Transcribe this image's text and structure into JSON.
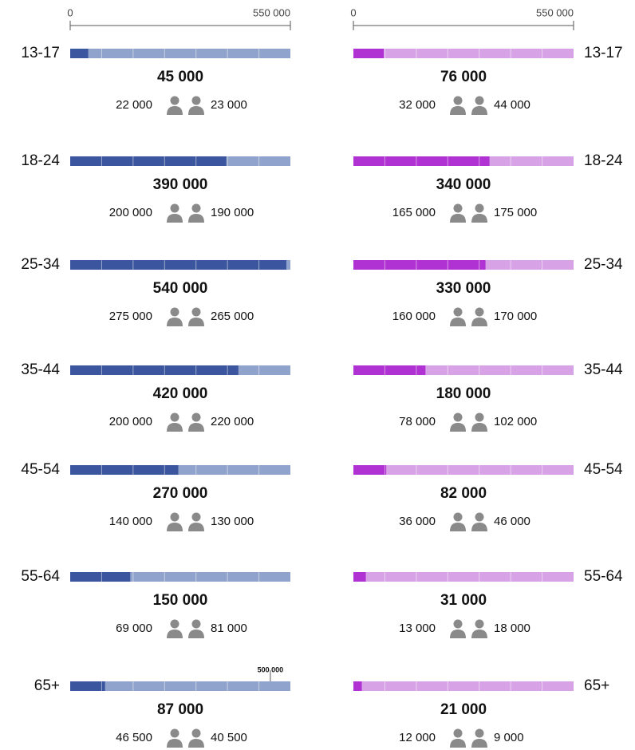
{
  "chart_data": [
    {
      "type": "bar",
      "side": "left",
      "color": "#3b569e",
      "track_color": "#8fa3cc",
      "xlim": [
        0,
        550000
      ],
      "xticks": [
        0,
        {
          "value": 550000,
          "label": "550 000"
        }
      ],
      "categories": [
        "13-17",
        "18-24",
        "25-34",
        "35-44",
        "45-54",
        "55-64",
        "65+"
      ],
      "values": [
        45000,
        390000,
        540000,
        420000,
        270000,
        150000,
        87000
      ],
      "value_labels": [
        "45 000",
        "390 000",
        "540 000",
        "420 000",
        "270 000",
        "150 000",
        "87 000"
      ],
      "series": [
        {
          "values": [
            22000,
            200000,
            275000,
            200000,
            140000,
            69000,
            46500
          ],
          "value_labels": [
            "22 000",
            "200 000",
            "275 000",
            "200 000",
            "140 000",
            "69 000",
            "46 500"
          ]
        },
        {
          "values": [
            23000,
            190000,
            265000,
            220000,
            130000,
            81000,
            40500
          ],
          "value_labels": [
            "23 000",
            "190 000",
            "265 000",
            "220 000",
            "130 000",
            "81 000",
            "40 500"
          ]
        }
      ],
      "annotation": {
        "value": 500000,
        "label": "500 000"
      }
    },
    {
      "type": "bar",
      "side": "right",
      "color": "#b132d2",
      "track_color": "#d8a3e6",
      "xlim": [
        0,
        550000
      ],
      "xticks": [
        0,
        {
          "value": 550000,
          "label": "550 000"
        }
      ],
      "categories": [
        "13-17",
        "18-24",
        "25-34",
        "35-44",
        "45-54",
        "55-64",
        "65+"
      ],
      "values": [
        76000,
        340000,
        330000,
        180000,
        82000,
        31000,
        21000
      ],
      "value_labels": [
        "76 000",
        "340 000",
        "330 000",
        "180 000",
        "82 000",
        "31 000",
        "21 000"
      ],
      "series": [
        {
          "values": [
            32000,
            165000,
            160000,
            78000,
            36000,
            13000,
            12000
          ],
          "value_labels": [
            "32 000",
            "165 000",
            "160 000",
            "78 000",
            "36 000",
            "13 000",
            "12 000"
          ]
        },
        {
          "values": [
            44000,
            175000,
            170000,
            102000,
            46000,
            18000,
            9000
          ],
          "value_labels": [
            "44 000",
            "175 000",
            "170 000",
            "102 000",
            "46 000",
            "18 000",
            "9 000"
          ]
        }
      ]
    }
  ]
}
